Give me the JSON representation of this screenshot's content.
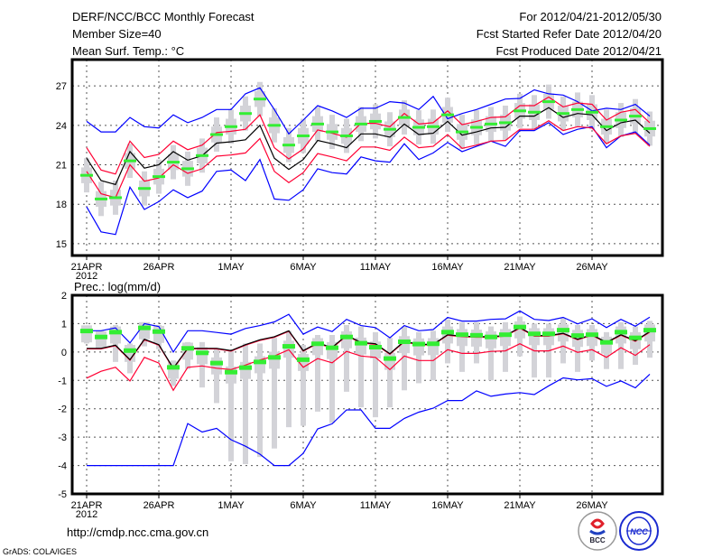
{
  "header": {
    "title": "DERF/NCC/BCC Monthly Forecast",
    "member_size": "Member Size=40",
    "variable": "Mean Surf. Temp.: °C",
    "period": "For 2012/04/21-2012/05/30",
    "started": "Fcst Started Refer Date 2012/04/20",
    "produced": "Fcst Produced Date 2012/04/21"
  },
  "footer": {
    "url": "http://cmdp.ncc.cma.gov.cn",
    "credit": "GrADS: COLA/IGES",
    "logo_bcc": "BCC",
    "logo_ncc": "NCC"
  },
  "colors": {
    "mean": "#000000",
    "spread": "#ff0033",
    "extreme": "#0000ff",
    "median": "#33ee33",
    "box": "#d3d3d8"
  },
  "chart_data": [
    {
      "type": "box-line",
      "title": "Mean Surf. Temp.: °C",
      "xlabel": "",
      "ylabel": "",
      "x_tick_labels": [
        "21APR",
        "26APR",
        "1MAY",
        "6MAY",
        "11MAY",
        "16MAY",
        "21MAY",
        "26MAY"
      ],
      "x_year_label": "2012",
      "y_ticks": [
        15,
        18,
        21,
        24,
        27
      ],
      "ylim": [
        14.1,
        29.0
      ],
      "grid": true,
      "days": 40,
      "series": [
        {
          "name": "mean",
          "values": [
            21.5,
            19.8,
            19.5,
            22.0,
            20.75,
            21.0,
            22.0,
            21.35,
            21.7,
            22.65,
            22.75,
            22.9,
            24.0,
            21.5,
            20.65,
            21.4,
            22.85,
            22.6,
            22.3,
            23.35,
            23.35,
            23.1,
            24.1,
            23.3,
            23.4,
            24.3,
            23.25,
            23.5,
            23.8,
            23.85,
            24.7,
            24.7,
            25.35,
            24.6,
            24.9,
            24.8,
            23.6,
            24.2,
            24.4,
            23.4
          ]
        },
        {
          "name": "spread-upper",
          "values": [
            22.3,
            20.6,
            20.3,
            22.8,
            21.55,
            21.8,
            22.8,
            22.15,
            22.5,
            23.45,
            23.55,
            23.7,
            24.8,
            22.3,
            21.45,
            22.2,
            23.65,
            23.4,
            23.1,
            24.15,
            24.15,
            23.9,
            24.9,
            24.1,
            24.2,
            25.1,
            24.05,
            24.3,
            24.6,
            24.65,
            25.5,
            25.5,
            26.15,
            25.4,
            25.7,
            25.6,
            24.4,
            25.0,
            25.2,
            24.2
          ]
        },
        {
          "name": "spread-lower",
          "values": [
            20.5,
            18.8,
            18.5,
            21.0,
            19.75,
            20.0,
            21.0,
            20.35,
            20.7,
            21.65,
            21.75,
            21.9,
            23.0,
            20.5,
            19.65,
            20.4,
            21.85,
            21.6,
            21.3,
            22.35,
            22.35,
            22.1,
            23.1,
            22.3,
            22.4,
            23.3,
            22.25,
            22.5,
            22.8,
            22.85,
            23.7,
            23.7,
            24.35,
            23.6,
            23.9,
            23.8,
            22.6,
            23.2,
            23.4,
            22.4
          ]
        },
        {
          "name": "max",
          "values": [
            24.3,
            23.5,
            23.5,
            24.6,
            23.9,
            23.8,
            24.8,
            24.2,
            24.6,
            25.2,
            25.2,
            26.4,
            26.85,
            25.2,
            23.35,
            24.4,
            25.5,
            25.1,
            24.6,
            25.3,
            25.3,
            25.8,
            25.7,
            25.2,
            26.2,
            24.5,
            24.9,
            25.2,
            25.6,
            26.0,
            26.05,
            26.7,
            26.4,
            26.3,
            25.8,
            25.1,
            25.3,
            25.2,
            25.6,
            24.7
          ]
        },
        {
          "name": "min",
          "values": [
            17.8,
            15.9,
            15.7,
            19.3,
            17.6,
            18.2,
            19.1,
            18.5,
            19.0,
            20.5,
            20.6,
            19.8,
            21.4,
            18.4,
            18.3,
            19.1,
            20.7,
            20.4,
            20.3,
            21.6,
            21.3,
            21.2,
            22.6,
            21.4,
            21.9,
            22.7,
            22.0,
            22.4,
            22.8,
            22.4,
            23.6,
            23.6,
            24.2,
            23.3,
            23.7,
            23.9,
            22.3,
            23.2,
            23.5,
            22.5
          ]
        }
      ],
      "median": [
        20.2,
        18.4,
        18.5,
        21.3,
        19.2,
        20.1,
        21.2,
        20.7,
        21.7,
        23.3,
        23.9,
        24.9,
        26.0,
        24.0,
        22.5,
        23.2,
        24.1,
        23.5,
        23.2,
        24.1,
        24.3,
        23.7,
        24.6,
        23.85,
        23.9,
        24.8,
        23.5,
        23.85,
        24.1,
        24.2,
        25.1,
        25.0,
        25.8,
        24.9,
        25.2,
        25.0,
        23.9,
        24.4,
        24.7,
        23.75
      ],
      "box_low": [
        19.6,
        17.8,
        17.9,
        20.7,
        18.6,
        19.5,
        20.6,
        20.1,
        21.1,
        22.7,
        23.3,
        24.3,
        25.4,
        23.4,
        21.9,
        22.6,
        23.5,
        22.9,
        22.6,
        23.5,
        23.7,
        23.1,
        24.0,
        23.25,
        23.3,
        24.2,
        22.9,
        23.25,
        23.5,
        23.6,
        24.5,
        24.4,
        25.2,
        24.3,
        24.6,
        24.4,
        23.3,
        23.8,
        24.1,
        23.15
      ],
      "box_high": [
        20.8,
        19.0,
        19.1,
        21.9,
        19.8,
        20.7,
        21.8,
        21.3,
        22.3,
        23.9,
        24.5,
        25.5,
        26.6,
        24.6,
        23.1,
        23.8,
        24.7,
        24.1,
        23.8,
        24.7,
        24.9,
        24.3,
        25.2,
        24.45,
        24.5,
        25.4,
        24.1,
        24.45,
        24.7,
        24.8,
        25.7,
        25.6,
        26.4,
        25.5,
        25.8,
        25.6,
        24.5,
        25.0,
        25.3,
        24.35
      ],
      "whisker_low": [
        18.9,
        17.1,
        17.2,
        20.0,
        17.9,
        18.8,
        19.9,
        19.4,
        20.4,
        22.0,
        22.6,
        23.6,
        24.7,
        22.7,
        21.2,
        21.9,
        22.8,
        22.2,
        21.9,
        22.8,
        23.0,
        22.4,
        23.3,
        22.55,
        22.6,
        23.5,
        22.2,
        22.55,
        22.8,
        22.9,
        23.8,
        23.7,
        24.5,
        23.6,
        23.9,
        23.7,
        22.6,
        23.1,
        23.4,
        22.45
      ],
      "whisker_high": [
        21.5,
        19.7,
        19.8,
        22.6,
        20.5,
        21.4,
        22.5,
        22.0,
        23.0,
        24.6,
        25.2,
        26.2,
        27.3,
        25.3,
        23.8,
        24.5,
        25.4,
        24.8,
        24.5,
        25.4,
        25.6,
        25.0,
        25.9,
        25.15,
        25.2,
        26.1,
        24.8,
        25.15,
        25.4,
        25.5,
        26.4,
        26.3,
        27.1,
        26.2,
        26.5,
        26.3,
        25.2,
        25.7,
        26.0,
        25.05
      ]
    },
    {
      "type": "box-line",
      "title": "Prec.: log(mm/d)",
      "xlabel": "",
      "ylabel": "",
      "x_tick_labels": [
        "21APR",
        "26APR",
        "1MAY",
        "6MAY",
        "11MAY",
        "16MAY",
        "21MAY",
        "26MAY"
      ],
      "x_year_label": "2012",
      "y_ticks": [
        -5,
        -4,
        -3,
        -2,
        -1,
        0,
        1,
        2
      ],
      "ylim": [
        -5,
        2
      ],
      "grid": true,
      "days": 40,
      "series": [
        {
          "name": "mean",
          "values": [
            0.13,
            0.13,
            0.24,
            -0.27,
            0.45,
            0.26,
            -0.57,
            0.13,
            0.13,
            0.13,
            0.05,
            0.26,
            0.43,
            0.54,
            0.75,
            0.05,
            0.32,
            0.16,
            0.59,
            0.34,
            0.29,
            -0.06,
            0.38,
            0.27,
            0.27,
            0.61,
            0.56,
            0.54,
            0.54,
            0.58,
            0.86,
            0.58,
            0.58,
            0.66,
            0.45,
            0.61,
            0.34,
            0.61,
            0.4,
            0.72
          ]
        },
        {
          "name": "spread-upper",
          "values": [
            0.11,
            0.11,
            0.22,
            -0.29,
            0.43,
            0.24,
            -0.59,
            0.11,
            0.11,
            0.11,
            0.03,
            0.24,
            0.41,
            0.52,
            0.73,
            0.03,
            0.3,
            0.14,
            0.57,
            0.32,
            0.27,
            -0.08,
            0.36,
            0.25,
            0.25,
            0.59,
            0.54,
            0.52,
            0.52,
            0.56,
            0.84,
            0.56,
            0.56,
            0.64,
            0.43,
            0.59,
            0.32,
            0.59,
            0.38,
            0.7
          ]
        },
        {
          "name": "spread-lower",
          "values": [
            -0.92,
            -0.68,
            -0.54,
            -1.02,
            -0.19,
            -0.39,
            -1.35,
            -0.54,
            -0.49,
            -0.57,
            -0.62,
            -0.46,
            -0.28,
            -0.14,
            0.08,
            -0.54,
            -0.23,
            -0.38,
            0.02,
            -0.14,
            -0.19,
            -0.62,
            -0.14,
            -0.3,
            -0.3,
            0.08,
            -0.05,
            -0.05,
            0.02,
            0.04,
            0.29,
            0.04,
            0.04,
            0.21,
            -0.01,
            0.08,
            -0.19,
            0.15,
            -0.12,
            0.26
          ]
        },
        {
          "name": "max",
          "values": [
            0.75,
            0.75,
            0.85,
            0.32,
            1.0,
            0.9,
            0.0,
            0.75,
            0.75,
            0.69,
            0.63,
            0.83,
            0.93,
            1.06,
            1.33,
            0.63,
            0.88,
            0.72,
            1.15,
            0.93,
            0.86,
            0.5,
            0.93,
            0.75,
            0.79,
            1.22,
            1.09,
            1.09,
            1.15,
            1.17,
            1.45,
            1.15,
            1.11,
            1.22,
            0.99,
            1.17,
            0.86,
            1.15,
            0.91,
            1.23
          ]
        },
        {
          "name": "min",
          "values": [
            -4.0,
            -4.0,
            -4.0,
            -4.0,
            -4.0,
            -4.0,
            -4.0,
            -2.52,
            -2.82,
            -2.69,
            -3.09,
            -3.32,
            -3.6,
            -4.0,
            -4.0,
            -3.57,
            -2.71,
            -2.53,
            -2.04,
            -2.04,
            -2.69,
            -2.69,
            -2.34,
            -2.12,
            -1.98,
            -1.71,
            -1.71,
            -1.37,
            -1.56,
            -1.48,
            -1.43,
            -1.5,
            -1.19,
            -0.91,
            -0.98,
            -0.94,
            -1.21,
            -1.02,
            -1.26,
            -0.78
          ]
        }
      ],
      "median": [
        0.74,
        0.53,
        0.7,
        0.05,
        0.85,
        0.72,
        -0.54,
        0.13,
        -0.03,
        -0.39,
        -0.71,
        -0.55,
        -0.35,
        -0.19,
        0.2,
        -0.27,
        0.29,
        0.15,
        0.53,
        0.31,
        0.17,
        -0.23,
        0.36,
        0.28,
        0.29,
        0.7,
        0.61,
        0.59,
        0.53,
        0.61,
        0.88,
        0.64,
        0.64,
        0.77,
        0.58,
        0.61,
        0.34,
        0.7,
        0.5,
        0.77
      ],
      "box_low": [
        0.34,
        0.13,
        0.3,
        -0.35,
        0.45,
        0.32,
        -0.94,
        -0.27,
        -0.43,
        -0.79,
        -1.11,
        -0.95,
        -0.75,
        -0.59,
        -0.2,
        -0.67,
        -0.11,
        -0.25,
        0.13,
        -0.09,
        -0.23,
        -0.63,
        -0.04,
        -0.12,
        -0.11,
        0.3,
        0.21,
        0.19,
        0.13,
        0.21,
        0.48,
        0.24,
        0.24,
        0.37,
        0.18,
        0.21,
        -0.06,
        0.3,
        0.1,
        0.37
      ],
      "box_high": [
        0.94,
        0.73,
        0.9,
        0.25,
        1.05,
        0.92,
        -0.34,
        0.33,
        0.17,
        -0.19,
        -0.51,
        -0.35,
        -0.15,
        0.01,
        0.4,
        -0.07,
        0.49,
        0.35,
        0.73,
        0.51,
        0.37,
        -0.03,
        0.56,
        0.48,
        0.49,
        0.9,
        0.81,
        0.79,
        0.73,
        0.81,
        1.08,
        0.84,
        0.84,
        0.97,
        0.78,
        0.81,
        0.54,
        0.9,
        0.7,
        0.97
      ],
      "whisker_low": [
        0.3,
        0.3,
        -0.35,
        -0.75,
        0.2,
        0.1,
        -1.2,
        -0.6,
        -1.25,
        -1.8,
        -3.85,
        -3.95,
        -3.7,
        -3.4,
        -2.65,
        -2.6,
        -2.1,
        -2.5,
        -1.4,
        -1.95,
        -2.3,
        -1.95,
        -1.35,
        -1.1,
        -1.0,
        -0.4,
        -0.7,
        -0.4,
        -1.0,
        -0.7,
        -0.15,
        -0.9,
        -0.9,
        -0.4,
        -0.7,
        -0.3,
        -0.6,
        -0.6,
        -0.45,
        -0.2
      ],
      "whisker_high": [
        0.85,
        0.75,
        0.95,
        0.3,
        1.05,
        0.95,
        -0.3,
        0.35,
        0.35,
        0.1,
        0.05,
        0.3,
        0.3,
        0.5,
        0.75,
        0.25,
        0.6,
        0.6,
        0.95,
        0.9,
        0.7,
        0.5,
        0.9,
        0.7,
        0.75,
        1.15,
        1.05,
        1.05,
        0.9,
        1.05,
        1.25,
        1.0,
        1.0,
        1.2,
        0.95,
        0.95,
        0.7,
        1.05,
        0.9,
        1.1
      ]
    }
  ]
}
